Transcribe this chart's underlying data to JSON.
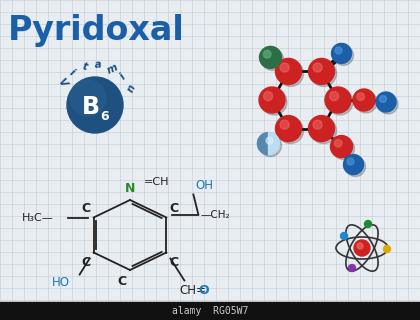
{
  "title": "Pyridoxal",
  "title_color": "#1a5fa8",
  "bg_color": "#e8edf2",
  "grid_color": "#c5cad4",
  "vitamin_circle_color": "#1e5080",
  "formula_color": "#222222",
  "N_color": "#2a8a2a",
  "OH_color": "#1a7ab5",
  "O_color": "#1a7ab5",
  "red_atom": "#cc2222",
  "green_atom": "#2d6e45",
  "blue_atom": "#1a5fa8",
  "light_blue_atom": "#88b8d8",
  "bond_color": "#111111",
  "watermark_bg": "#111111",
  "watermark_text": "alamy  RG05W7",
  "watermark_color": "#cccccc",
  "vitamin_letters": [
    "V",
    "i",
    "t",
    "a",
    "m",
    "i",
    "n"
  ],
  "vitamin_angles_deg": [
    215,
    235,
    255,
    275,
    295,
    315,
    335
  ]
}
